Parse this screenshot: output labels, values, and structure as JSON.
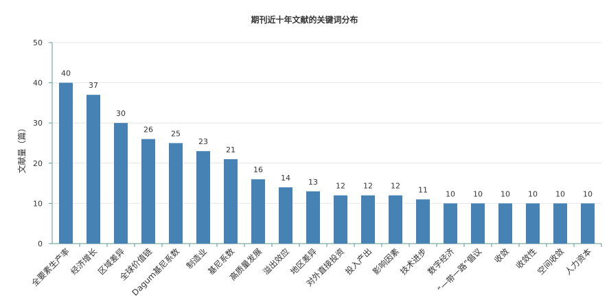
{
  "chart_data": {
    "type": "bar",
    "title": "期刊近十年文献的关键词分布",
    "xlabel": "",
    "ylabel": "文献量（篇）",
    "ylim": [
      0,
      50
    ],
    "yticks": [
      0,
      10,
      20,
      30,
      40,
      50
    ],
    "grid": true,
    "legend": "none",
    "categories": [
      "全要素生产率",
      "经济增长",
      "区域差异",
      "全球价值链",
      "Dagum基尼系数",
      "制造业",
      "基尼系数",
      "高质量发展",
      "溢出效应",
      "地区差异",
      "对外直接投资",
      "投入产出",
      "影响因素",
      "技术进步",
      "数字经济",
      "“一带一路”倡议",
      "收敛",
      "收敛性",
      "空间收敛",
      "人力资本"
    ],
    "values": [
      40,
      37,
      30,
      26,
      25,
      23,
      21,
      16,
      14,
      13,
      12,
      12,
      12,
      11,
      10,
      10,
      10,
      10,
      10,
      10
    ],
    "colors": {
      "bar": "#4682b4",
      "axis": "#5b9a8b",
      "grid": "#e6e6e6",
      "text": "#333333"
    }
  }
}
